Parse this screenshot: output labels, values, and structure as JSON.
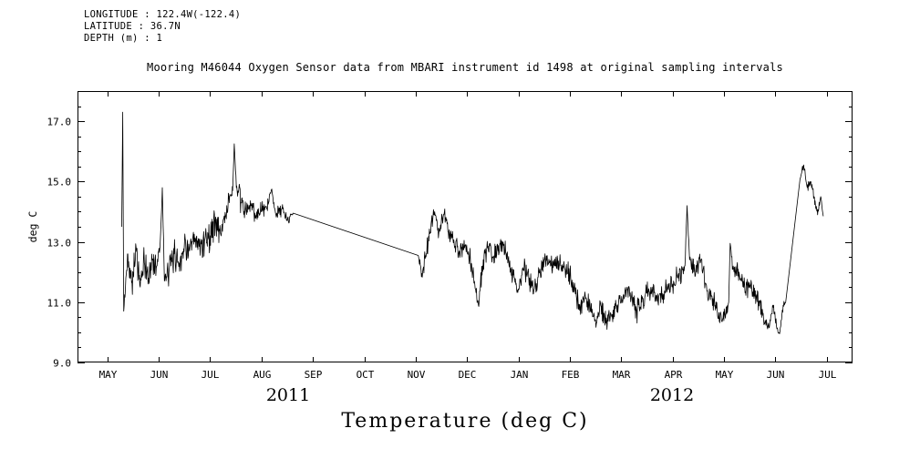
{
  "header": {
    "line1": "LONGITUDE : 122.4W(-122.4)",
    "line2": "LATITUDE : 36.7N",
    "line3": "DEPTH (m) : 1"
  },
  "title": "Mooring M46044 Oxygen Sensor data from MBARI instrument id 1498 at original sampling intervals",
  "years": [
    {
      "text": "2011"
    },
    {
      "text": "2012"
    }
  ],
  "bottom_title": "Temperature (deg C)",
  "chart_data": {
    "type": "line",
    "title": "Mooring M46044 Oxygen Sensor data from MBARI instrument id 1498 at original sampling intervals",
    "ylabel": "deg C",
    "xlabel": "Temperature (deg C)",
    "x_unit": "months since 2011-05-01",
    "x_range": [
      -0.58,
      14.5
    ],
    "y_range": [
      9,
      18
    ],
    "grid": false,
    "legend": false,
    "line_color": "#000000",
    "background_color": "#ffffff",
    "y_ticks": [
      {
        "v": 9,
        "label": "9.0"
      },
      {
        "v": 11,
        "label": "11.0"
      },
      {
        "v": 13,
        "label": "13.0"
      },
      {
        "v": 15,
        "label": "15.0"
      },
      {
        "v": 17,
        "label": "17.0"
      }
    ],
    "y_minor_ticks": [
      9.5,
      10,
      10.5,
      11.5,
      12,
      12.5,
      13.5,
      14,
      14.5,
      15.5,
      16,
      16.5,
      17.5
    ],
    "x_ticks": [
      {
        "v": 0,
        "label": "MAY"
      },
      {
        "v": 1,
        "label": "JUN"
      },
      {
        "v": 2,
        "label": "JUL"
      },
      {
        "v": 3,
        "label": "AUG"
      },
      {
        "v": 4,
        "label": "SEP"
      },
      {
        "v": 5,
        "label": "OCT"
      },
      {
        "v": 6,
        "label": "NOV"
      },
      {
        "v": 7,
        "label": "DEC"
      },
      {
        "v": 8,
        "label": "JAN"
      },
      {
        "v": 9,
        "label": "FEB"
      },
      {
        "v": 10,
        "label": "MAR"
      },
      {
        "v": 11,
        "label": "APR"
      },
      {
        "v": 12,
        "label": "MAY"
      },
      {
        "v": 13,
        "label": "JUN"
      },
      {
        "v": 14,
        "label": "JUL"
      }
    ],
    "noise_seed": 42,
    "noise_step": 0.008,
    "anchor_format": "[x_months, deg_c, noise_amplitude, straight_line_to_next(1=yes)]",
    "anchors": [
      [
        0.28,
        13.5,
        0,
        1
      ],
      [
        0.3,
        17.3,
        0,
        1
      ],
      [
        0.32,
        10.7,
        0.15
      ],
      [
        0.4,
        12.6,
        0.45
      ],
      [
        0.48,
        11.7,
        0.4
      ],
      [
        0.56,
        12.8,
        0.45
      ],
      [
        0.64,
        11.5,
        0.4
      ],
      [
        0.72,
        12.3,
        0.45
      ],
      [
        0.8,
        11.8,
        0.45
      ],
      [
        0.88,
        12.4,
        0.4
      ],
      [
        0.96,
        12.2,
        0.35
      ],
      [
        1.03,
        13.0,
        0.25
      ],
      [
        1.07,
        14.8,
        0.03
      ],
      [
        1.11,
        11.7,
        0.25
      ],
      [
        1.2,
        12.0,
        0.4
      ],
      [
        1.3,
        12.6,
        0.4
      ],
      [
        1.4,
        12.3,
        0.4
      ],
      [
        1.5,
        12.9,
        0.35
      ],
      [
        1.6,
        12.7,
        0.35
      ],
      [
        1.7,
        13.0,
        0.35
      ],
      [
        1.8,
        12.8,
        0.4
      ],
      [
        1.9,
        13.1,
        0.4
      ],
      [
        2.0,
        13.2,
        0.45
      ],
      [
        2.1,
        13.7,
        0.45
      ],
      [
        2.2,
        13.3,
        0.45
      ],
      [
        2.3,
        13.9,
        0.4
      ],
      [
        2.38,
        14.5,
        0.25
      ],
      [
        2.44,
        14.7,
        0.15
      ],
      [
        2.47,
        16.25,
        0.03
      ],
      [
        2.51,
        14.8,
        0.2
      ],
      [
        2.6,
        14.3,
        0.35
      ],
      [
        2.7,
        14.0,
        0.3
      ],
      [
        2.8,
        14.2,
        0.3
      ],
      [
        2.9,
        13.9,
        0.25
      ],
      [
        3.0,
        14.0,
        0.25
      ],
      [
        3.1,
        14.1,
        0.25
      ],
      [
        3.2,
        14.75,
        0.06
      ],
      [
        3.28,
        13.9,
        0.2
      ],
      [
        3.4,
        14.1,
        0.2
      ],
      [
        3.5,
        13.7,
        0.15
      ],
      [
        3.58,
        13.9,
        0.1
      ],
      [
        3.62,
        13.95,
        0,
        1
      ],
      [
        6.05,
        12.55,
        0.15
      ],
      [
        6.12,
        11.95,
        0.2
      ],
      [
        6.2,
        12.5,
        0.3
      ],
      [
        6.3,
        13.6,
        0.25
      ],
      [
        6.37,
        14.0,
        0.1
      ],
      [
        6.45,
        13.3,
        0.3
      ],
      [
        6.55,
        13.9,
        0.2
      ],
      [
        6.65,
        13.4,
        0.3
      ],
      [
        6.75,
        12.9,
        0.3
      ],
      [
        6.85,
        12.7,
        0.25
      ],
      [
        6.95,
        12.8,
        0.25
      ],
      [
        7.05,
        12.5,
        0.25
      ],
      [
        7.15,
        11.6,
        0.3
      ],
      [
        7.22,
        10.9,
        0.15
      ],
      [
        7.3,
        12.2,
        0.3
      ],
      [
        7.4,
        12.8,
        0.25
      ],
      [
        7.5,
        12.5,
        0.25
      ],
      [
        7.6,
        12.7,
        0.25
      ],
      [
        7.7,
        13.0,
        0.2
      ],
      [
        7.8,
        12.4,
        0.25
      ],
      [
        7.9,
        11.9,
        0.3
      ],
      [
        7.98,
        11.4,
        0.2
      ],
      [
        8.1,
        12.1,
        0.3
      ],
      [
        8.2,
        11.8,
        0.3
      ],
      [
        8.3,
        11.4,
        0.25
      ],
      [
        8.4,
        12.0,
        0.3
      ],
      [
        8.5,
        12.4,
        0.25
      ],
      [
        8.6,
        12.3,
        0.25
      ],
      [
        8.7,
        12.2,
        0.25
      ],
      [
        8.8,
        12.3,
        0.2
      ],
      [
        8.9,
        12.1,
        0.25
      ],
      [
        9.0,
        11.9,
        0.3
      ],
      [
        9.1,
        11.4,
        0.3
      ],
      [
        9.2,
        10.8,
        0.3
      ],
      [
        9.3,
        11.2,
        0.3
      ],
      [
        9.4,
        10.7,
        0.3
      ],
      [
        9.5,
        10.4,
        0.25
      ],
      [
        9.6,
        10.9,
        0.3
      ],
      [
        9.7,
        10.3,
        0.25
      ],
      [
        9.8,
        10.6,
        0.3
      ],
      [
        9.9,
        10.9,
        0.3
      ],
      [
        10.0,
        11.0,
        0.3
      ],
      [
        10.1,
        11.4,
        0.3
      ],
      [
        10.2,
        11.2,
        0.3
      ],
      [
        10.3,
        10.7,
        0.3
      ],
      [
        10.4,
        11.0,
        0.3
      ],
      [
        10.5,
        11.3,
        0.3
      ],
      [
        10.6,
        11.5,
        0.3
      ],
      [
        10.7,
        11.2,
        0.3
      ],
      [
        10.8,
        11.1,
        0.3
      ],
      [
        10.9,
        11.6,
        0.3
      ],
      [
        11.0,
        11.6,
        0.3
      ],
      [
        11.1,
        11.8,
        0.3
      ],
      [
        11.2,
        12.1,
        0.25
      ],
      [
        11.24,
        12.2,
        0.1
      ],
      [
        11.28,
        14.2,
        0.03
      ],
      [
        11.33,
        12.4,
        0.15
      ],
      [
        11.45,
        12.0,
        0.3
      ],
      [
        11.55,
        12.4,
        0.3
      ],
      [
        11.65,
        11.6,
        0.3
      ],
      [
        11.75,
        11.2,
        0.3
      ],
      [
        11.85,
        10.8,
        0.3
      ],
      [
        11.95,
        10.4,
        0.25
      ],
      [
        12.05,
        10.6,
        0.2
      ],
      [
        12.09,
        11.0,
        0.1
      ],
      [
        12.12,
        12.95,
        0.03
      ],
      [
        12.17,
        12.1,
        0.2
      ],
      [
        12.3,
        11.9,
        0.3
      ],
      [
        12.4,
        11.6,
        0.3
      ],
      [
        12.5,
        11.5,
        0.3
      ],
      [
        12.6,
        11.2,
        0.3
      ],
      [
        12.7,
        11.0,
        0.3
      ],
      [
        12.8,
        10.4,
        0.25
      ],
      [
        12.88,
        10.15,
        0.15
      ],
      [
        12.95,
        10.9,
        0.2
      ],
      [
        13.02,
        10.2,
        0.15
      ],
      [
        13.08,
        9.95,
        0.08
      ],
      [
        13.15,
        10.9,
        0.15
      ],
      [
        13.2,
        11.0,
        0,
        1
      ],
      [
        13.48,
        15.1,
        0.08
      ],
      [
        13.55,
        15.55,
        0.08
      ],
      [
        13.62,
        14.8,
        0.15
      ],
      [
        13.68,
        15.0,
        0.12
      ],
      [
        13.75,
        14.5,
        0.15
      ],
      [
        13.82,
        13.9,
        0.15
      ],
      [
        13.88,
        14.5,
        0.1
      ],
      [
        13.93,
        13.85,
        0.05
      ]
    ]
  }
}
